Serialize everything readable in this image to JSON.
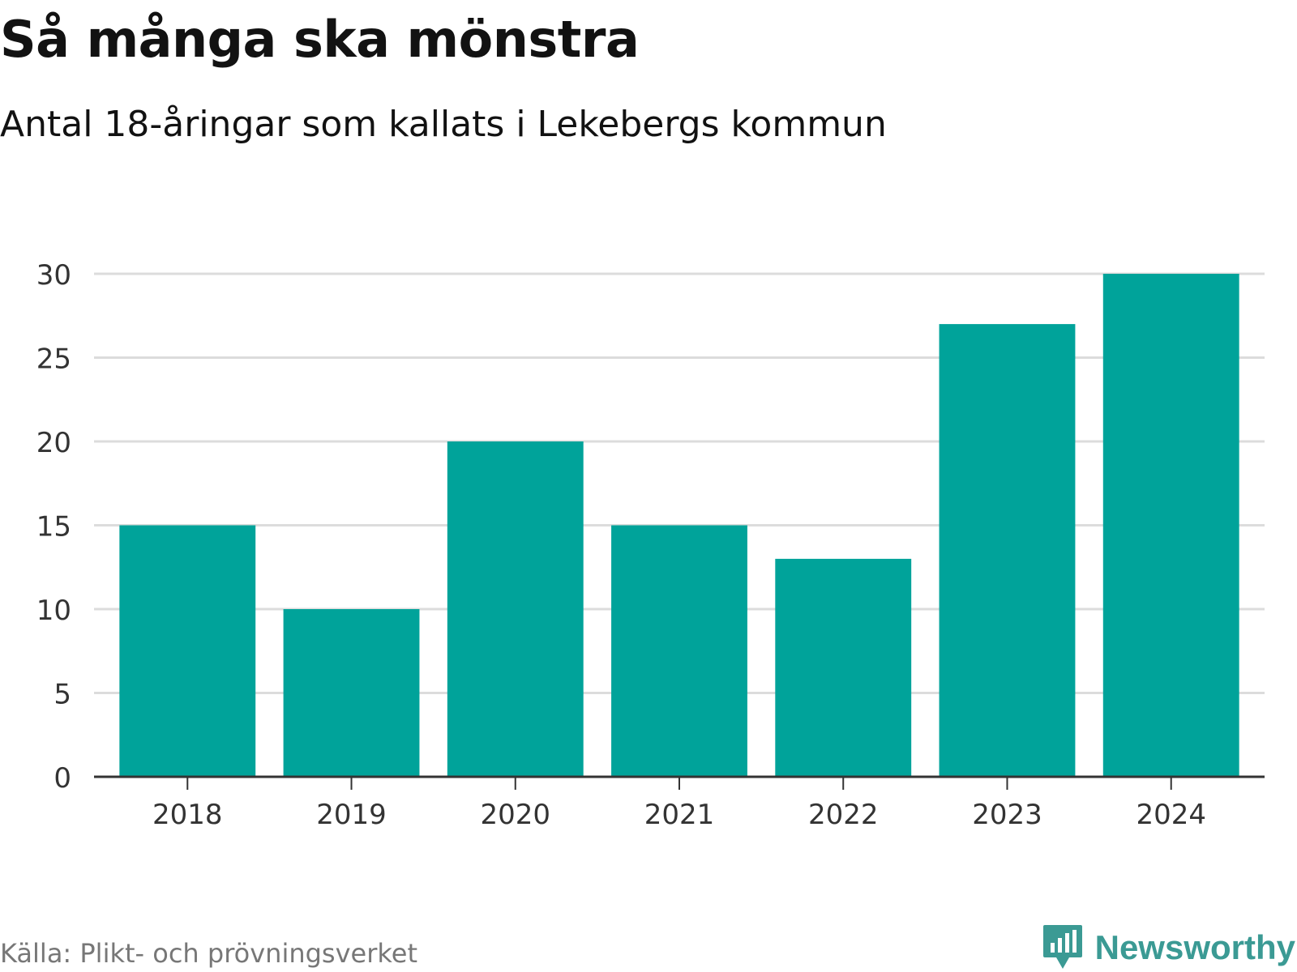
{
  "header": {
    "title": "Så många ska mönstra",
    "subtitle": "Antal 18-åringar som kallats i Lekebergs kommun"
  },
  "footer": {
    "source": "Källa: Plikt- och prövningsverket",
    "brand": "Newsworthy",
    "brand_icon": "newsworthy-logo-icon"
  },
  "colors": {
    "bar": "#00a39a",
    "grid": "#dcdcdc",
    "axis": "#333333",
    "brand": "#3b9a94"
  },
  "chart_data": {
    "type": "bar",
    "title": "Så många ska mönstra",
    "subtitle": "Antal 18-åringar som kallats i Lekebergs kommun",
    "xlabel": "",
    "ylabel": "",
    "categories": [
      "2018",
      "2019",
      "2020",
      "2021",
      "2022",
      "2023",
      "2024"
    ],
    "values": [
      15,
      10,
      20,
      15,
      13,
      27,
      30
    ],
    "ylim": [
      0,
      30
    ],
    "yticks": [
      0,
      5,
      10,
      15,
      20,
      25,
      30
    ],
    "grid": true,
    "legend": "none"
  }
}
